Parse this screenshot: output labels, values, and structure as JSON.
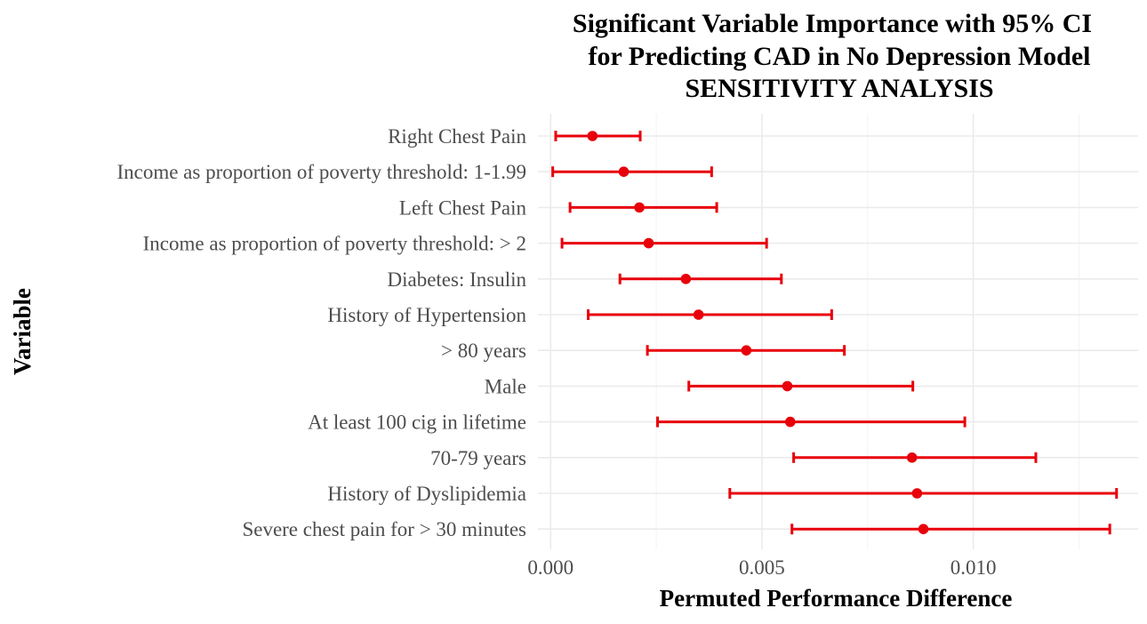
{
  "chart_data": {
    "type": "errorbar",
    "title": [
      "Significant Variable Importance with 95% CI",
      "for Predicting CAD in No Depression Model",
      "SENSITIVITY ANALYSIS"
    ],
    "xlabel": "Permuted Performance Difference",
    "ylabel": "Variable",
    "xlim": [
      -0.0003,
      0.0139
    ],
    "x_ticks": [
      0.0,
      0.005,
      0.01
    ],
    "x_tick_labels": [
      "0.000",
      "0.005",
      "0.010"
    ],
    "grid": true,
    "color": "#e8000b",
    "categories": [
      "Right Chest Pain",
      "Income as proportion of poverty threshold: 1-1.99",
      "Left Chest Pain",
      "Income as proportion of poverty threshold: > 2",
      "Diabetes: Insulin",
      "History of Hypertension",
      "> 80 years",
      "Male",
      "At least 100 cig in lifetime",
      "70-79 years",
      "History of Dyslipidemia",
      "Severe chest pain for > 30 minutes"
    ],
    "values": [
      0.00099,
      0.00173,
      0.0021,
      0.00232,
      0.0032,
      0.0035,
      0.00463,
      0.0056,
      0.00567,
      0.00855,
      0.00867,
      0.00882
    ],
    "lower": [
      0.00012,
      5e-05,
      0.00046,
      0.00027,
      0.00164,
      0.00089,
      0.00229,
      0.00327,
      0.00253,
      0.00575,
      0.00424,
      0.00571
    ],
    "upper": [
      0.00212,
      0.00381,
      0.00393,
      0.00511,
      0.00546,
      0.00665,
      0.00695,
      0.00857,
      0.0098,
      0.01148,
      0.01339,
      0.01323
    ]
  }
}
